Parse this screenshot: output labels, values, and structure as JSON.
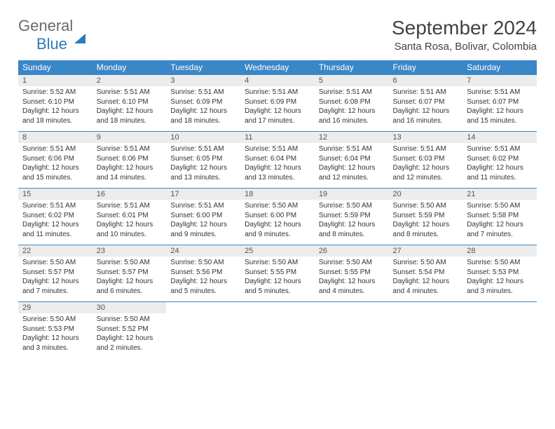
{
  "logo": {
    "part1": "General",
    "part2": "Blue"
  },
  "title": "September 2024",
  "location": "Santa Rosa, Bolivar, Colombia",
  "colors": {
    "header_bg": "#3a87c7",
    "header_text": "#ffffff",
    "daynum_bg": "#ececec",
    "border": "#3a87c7",
    "logo_gray": "#6a6a6a",
    "logo_blue": "#2b7bbd"
  },
  "weekdays": [
    "Sunday",
    "Monday",
    "Tuesday",
    "Wednesday",
    "Thursday",
    "Friday",
    "Saturday"
  ],
  "weeks": [
    [
      {
        "n": "1",
        "sr": "Sunrise: 5:52 AM",
        "ss": "Sunset: 6:10 PM",
        "d1": "Daylight: 12 hours",
        "d2": "and 18 minutes."
      },
      {
        "n": "2",
        "sr": "Sunrise: 5:51 AM",
        "ss": "Sunset: 6:10 PM",
        "d1": "Daylight: 12 hours",
        "d2": "and 18 minutes."
      },
      {
        "n": "3",
        "sr": "Sunrise: 5:51 AM",
        "ss": "Sunset: 6:09 PM",
        "d1": "Daylight: 12 hours",
        "d2": "and 18 minutes."
      },
      {
        "n": "4",
        "sr": "Sunrise: 5:51 AM",
        "ss": "Sunset: 6:09 PM",
        "d1": "Daylight: 12 hours",
        "d2": "and 17 minutes."
      },
      {
        "n": "5",
        "sr": "Sunrise: 5:51 AM",
        "ss": "Sunset: 6:08 PM",
        "d1": "Daylight: 12 hours",
        "d2": "and 16 minutes."
      },
      {
        "n": "6",
        "sr": "Sunrise: 5:51 AM",
        "ss": "Sunset: 6:07 PM",
        "d1": "Daylight: 12 hours",
        "d2": "and 16 minutes."
      },
      {
        "n": "7",
        "sr": "Sunrise: 5:51 AM",
        "ss": "Sunset: 6:07 PM",
        "d1": "Daylight: 12 hours",
        "d2": "and 15 minutes."
      }
    ],
    [
      {
        "n": "8",
        "sr": "Sunrise: 5:51 AM",
        "ss": "Sunset: 6:06 PM",
        "d1": "Daylight: 12 hours",
        "d2": "and 15 minutes."
      },
      {
        "n": "9",
        "sr": "Sunrise: 5:51 AM",
        "ss": "Sunset: 6:06 PM",
        "d1": "Daylight: 12 hours",
        "d2": "and 14 minutes."
      },
      {
        "n": "10",
        "sr": "Sunrise: 5:51 AM",
        "ss": "Sunset: 6:05 PM",
        "d1": "Daylight: 12 hours",
        "d2": "and 13 minutes."
      },
      {
        "n": "11",
        "sr": "Sunrise: 5:51 AM",
        "ss": "Sunset: 6:04 PM",
        "d1": "Daylight: 12 hours",
        "d2": "and 13 minutes."
      },
      {
        "n": "12",
        "sr": "Sunrise: 5:51 AM",
        "ss": "Sunset: 6:04 PM",
        "d1": "Daylight: 12 hours",
        "d2": "and 12 minutes."
      },
      {
        "n": "13",
        "sr": "Sunrise: 5:51 AM",
        "ss": "Sunset: 6:03 PM",
        "d1": "Daylight: 12 hours",
        "d2": "and 12 minutes."
      },
      {
        "n": "14",
        "sr": "Sunrise: 5:51 AM",
        "ss": "Sunset: 6:02 PM",
        "d1": "Daylight: 12 hours",
        "d2": "and 11 minutes."
      }
    ],
    [
      {
        "n": "15",
        "sr": "Sunrise: 5:51 AM",
        "ss": "Sunset: 6:02 PM",
        "d1": "Daylight: 12 hours",
        "d2": "and 11 minutes."
      },
      {
        "n": "16",
        "sr": "Sunrise: 5:51 AM",
        "ss": "Sunset: 6:01 PM",
        "d1": "Daylight: 12 hours",
        "d2": "and 10 minutes."
      },
      {
        "n": "17",
        "sr": "Sunrise: 5:51 AM",
        "ss": "Sunset: 6:00 PM",
        "d1": "Daylight: 12 hours",
        "d2": "and 9 minutes."
      },
      {
        "n": "18",
        "sr": "Sunrise: 5:50 AM",
        "ss": "Sunset: 6:00 PM",
        "d1": "Daylight: 12 hours",
        "d2": "and 9 minutes."
      },
      {
        "n": "19",
        "sr": "Sunrise: 5:50 AM",
        "ss": "Sunset: 5:59 PM",
        "d1": "Daylight: 12 hours",
        "d2": "and 8 minutes."
      },
      {
        "n": "20",
        "sr": "Sunrise: 5:50 AM",
        "ss": "Sunset: 5:59 PM",
        "d1": "Daylight: 12 hours",
        "d2": "and 8 minutes."
      },
      {
        "n": "21",
        "sr": "Sunrise: 5:50 AM",
        "ss": "Sunset: 5:58 PM",
        "d1": "Daylight: 12 hours",
        "d2": "and 7 minutes."
      }
    ],
    [
      {
        "n": "22",
        "sr": "Sunrise: 5:50 AM",
        "ss": "Sunset: 5:57 PM",
        "d1": "Daylight: 12 hours",
        "d2": "and 7 minutes."
      },
      {
        "n": "23",
        "sr": "Sunrise: 5:50 AM",
        "ss": "Sunset: 5:57 PM",
        "d1": "Daylight: 12 hours",
        "d2": "and 6 minutes."
      },
      {
        "n": "24",
        "sr": "Sunrise: 5:50 AM",
        "ss": "Sunset: 5:56 PM",
        "d1": "Daylight: 12 hours",
        "d2": "and 5 minutes."
      },
      {
        "n": "25",
        "sr": "Sunrise: 5:50 AM",
        "ss": "Sunset: 5:55 PM",
        "d1": "Daylight: 12 hours",
        "d2": "and 5 minutes."
      },
      {
        "n": "26",
        "sr": "Sunrise: 5:50 AM",
        "ss": "Sunset: 5:55 PM",
        "d1": "Daylight: 12 hours",
        "d2": "and 4 minutes."
      },
      {
        "n": "27",
        "sr": "Sunrise: 5:50 AM",
        "ss": "Sunset: 5:54 PM",
        "d1": "Daylight: 12 hours",
        "d2": "and 4 minutes."
      },
      {
        "n": "28",
        "sr": "Sunrise: 5:50 AM",
        "ss": "Sunset: 5:53 PM",
        "d1": "Daylight: 12 hours",
        "d2": "and 3 minutes."
      }
    ],
    [
      {
        "n": "29",
        "sr": "Sunrise: 5:50 AM",
        "ss": "Sunset: 5:53 PM",
        "d1": "Daylight: 12 hours",
        "d2": "and 3 minutes."
      },
      {
        "n": "30",
        "sr": "Sunrise: 5:50 AM",
        "ss": "Sunset: 5:52 PM",
        "d1": "Daylight: 12 hours",
        "d2": "and 2 minutes."
      },
      null,
      null,
      null,
      null,
      null
    ]
  ]
}
